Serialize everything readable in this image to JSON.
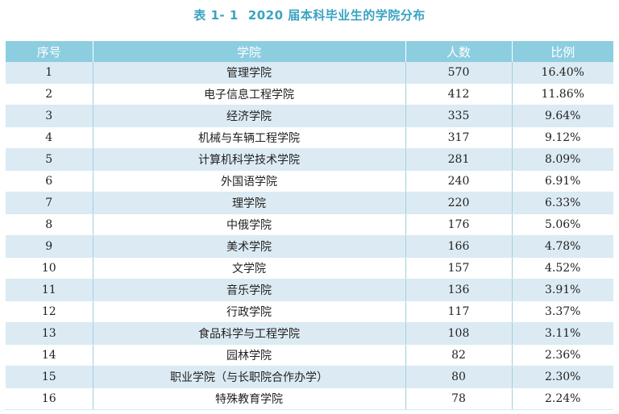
{
  "caption": {
    "label": "表 1- 1",
    "title": "2020 届本科毕业生的学院分布"
  },
  "table": {
    "headers": [
      "序号",
      "学院",
      "人数",
      "比例"
    ],
    "rows": [
      {
        "no": "1",
        "school": "管理学院",
        "count": "570",
        "ratio": "16.40%"
      },
      {
        "no": "2",
        "school": "电子信息工程学院",
        "count": "412",
        "ratio": "11.86%"
      },
      {
        "no": "3",
        "school": "经济学院",
        "count": "335",
        "ratio": "9.64%"
      },
      {
        "no": "4",
        "school": "机械与车辆工程学院",
        "count": "317",
        "ratio": "9.12%"
      },
      {
        "no": "5",
        "school": "计算机科学技术学院",
        "count": "281",
        "ratio": "8.09%"
      },
      {
        "no": "6",
        "school": "外国语学院",
        "count": "240",
        "ratio": "6.91%"
      },
      {
        "no": "7",
        "school": "理学院",
        "count": "220",
        "ratio": "6.33%"
      },
      {
        "no": "8",
        "school": "中俄学院",
        "count": "176",
        "ratio": "5.06%"
      },
      {
        "no": "9",
        "school": "美术学院",
        "count": "166",
        "ratio": "4.78%"
      },
      {
        "no": "10",
        "school": "文学院",
        "count": "157",
        "ratio": "4.52%"
      },
      {
        "no": "11",
        "school": "音乐学院",
        "count": "136",
        "ratio": "3.91%"
      },
      {
        "no": "12",
        "school": "行政学院",
        "count": "117",
        "ratio": "3.37%"
      },
      {
        "no": "13",
        "school": "食品科学与工程学院",
        "count": "108",
        "ratio": "3.11%"
      },
      {
        "no": "14",
        "school": "园林学院",
        "count": "82",
        "ratio": "2.36%"
      },
      {
        "no": "15",
        "school": "职业学院（与长职院合作办学）",
        "count": "80",
        "ratio": "2.30%"
      },
      {
        "no": "16",
        "school": "特殊教育学院",
        "count": "78",
        "ratio": "2.24%"
      }
    ]
  },
  "colors": {
    "caption": "#3aa3c2",
    "header_bg": "#8ccde0",
    "stripe": "#dcebf3"
  }
}
